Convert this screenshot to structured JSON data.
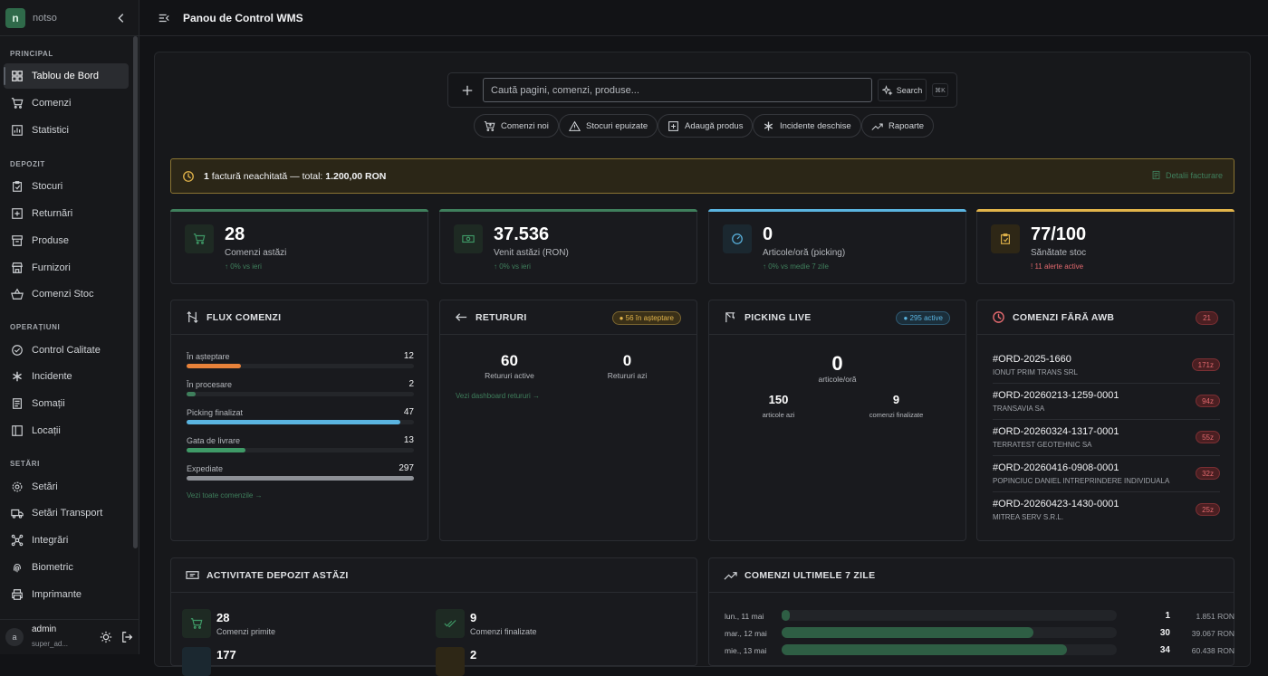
{
  "app": {
    "brand_initial": "n",
    "brand_name": "notso",
    "page_title": "Panou de Control WMS"
  },
  "sidebar": {
    "sections": [
      {
        "label": "PRINCIPAL"
      },
      {
        "label": "DEPOZIT"
      },
      {
        "label": "OPERAȚIUNI"
      },
      {
        "label": "SETĂRI"
      }
    ],
    "items": [
      {
        "label": "Tablou de Bord",
        "icon": "dashboard-icon",
        "active": true
      },
      {
        "label": "Comenzi",
        "icon": "cart-icon"
      },
      {
        "label": "Statistici",
        "icon": "chart-icon"
      },
      {
        "label": "Stocuri",
        "icon": "clipboard-icon"
      },
      {
        "label": "Returnări",
        "icon": "return-box-icon"
      },
      {
        "label": "Produse",
        "icon": "archive-icon"
      },
      {
        "label": "Furnizori",
        "icon": "store-icon"
      },
      {
        "label": "Comenzi Stoc",
        "icon": "basket-icon"
      },
      {
        "label": "Control Calitate",
        "icon": "badge-check-icon"
      },
      {
        "label": "Incidente",
        "icon": "asterisk-icon"
      },
      {
        "label": "Somații",
        "icon": "document-icon"
      },
      {
        "label": "Locații",
        "icon": "book-icon"
      },
      {
        "label": "Setări",
        "icon": "gear-icon"
      },
      {
        "label": "Setări Transport",
        "icon": "truck-icon"
      },
      {
        "label": "Integrări",
        "icon": "network-icon"
      },
      {
        "label": "Biometric",
        "icon": "fingerprint-icon"
      },
      {
        "label": "Imprimante",
        "icon": "printer-icon"
      }
    ],
    "user": {
      "initial": "a",
      "name": "admin",
      "role": "super_ad..."
    }
  },
  "search": {
    "placeholder": "Caută pagini, comenzi, produse...",
    "button": "Search",
    "shortcut": "⌘K"
  },
  "quick_actions": [
    {
      "label": "Comenzi noi",
      "icon": "cart-plus-icon"
    },
    {
      "label": "Stocuri epuizate",
      "icon": "warning-icon"
    },
    {
      "label": "Adaugă produs",
      "icon": "plus-square-icon"
    },
    {
      "label": "Incidente deschise",
      "icon": "asterisk-icon"
    },
    {
      "label": "Rapoarte",
      "icon": "trend-icon"
    }
  ],
  "alert": {
    "count": "1",
    "text": " factură neachitată — total: ",
    "amount": "1.200,00 RON",
    "link": "Detalii facturare"
  },
  "kpis": [
    {
      "value": "28",
      "label": "Comenzi astăzi",
      "sub": "↑ 0% vs ieri",
      "color": "#3f7f5c"
    },
    {
      "value": "37.536",
      "label": "Venit astăzi (RON)",
      "sub": "↑ 0% vs ieri",
      "color": "#3f7f5c"
    },
    {
      "value": "0",
      "label": "Articole/oră (picking)",
      "sub": "↑ 0% vs medie 7 zile",
      "color": "#5ab4e0"
    },
    {
      "value": "77/100",
      "label": "Sănătate stoc",
      "sub": "! 11 alerte active",
      "color": "#e2b44a"
    }
  ],
  "flux": {
    "title": "FLUX COMENZI",
    "rows": [
      {
        "label": "În așteptare",
        "value": "12",
        "pct": 0.24,
        "color": "#e8823a"
      },
      {
        "label": "În procesare",
        "value": "2",
        "pct": 0.04,
        "color": "#3f7f5c"
      },
      {
        "label": "Picking finalizat",
        "value": "47",
        "pct": 0.94,
        "color": "#5ab4e0"
      },
      {
        "label": "Gata de livrare",
        "value": "13",
        "pct": 0.26,
        "color": "#3f9a67"
      },
      {
        "label": "Expediate",
        "value": "297",
        "pct": 1.0,
        "color": "#8d9096"
      }
    ],
    "link": "Vezi toate comenzile →"
  },
  "returns": {
    "title": "RETURURI",
    "badge": "● 56 în așteptare",
    "active_value": "60",
    "active_label": "Retururi active",
    "today_value": "0",
    "today_label": "Retururi azi",
    "link": "Vezi dashboard retururi →"
  },
  "picking": {
    "title": "PICKING LIVE",
    "badge": "● 295 active",
    "rate_value": "0",
    "rate_label": "articole/oră",
    "items_value": "150",
    "items_label": "articole azi",
    "orders_value": "9",
    "orders_label": "comenzi finalizate"
  },
  "awb": {
    "title": "COMENZI FĂRĂ AWB",
    "count": "21",
    "orders": [
      {
        "id": "#ORD-2025-1660",
        "client": "IONUT PRIM TRANS SRL",
        "age": "171z"
      },
      {
        "id": "#ORD-20260213-1259-0001",
        "client": "TRANSAVIA SA",
        "age": "94z"
      },
      {
        "id": "#ORD-20260324-1317-0001",
        "client": "TERRATEST GEOTEHNIC SA",
        "age": "55z"
      },
      {
        "id": "#ORD-20260416-0908-0001",
        "client": "POPINCIUC DANIEL INTREPRINDERE INDIVIDUALA",
        "age": "32z"
      },
      {
        "id": "#ORD-20260423-1430-0001",
        "client": "MITREA SERV S.R.L.",
        "age": "25z"
      }
    ]
  },
  "activity": {
    "title": "ACTIVITATE DEPOZIT ASTĂZI",
    "items": [
      {
        "value": "28",
        "label": "Comenzi primite"
      },
      {
        "value": "9",
        "label": "Comenzi finalizate"
      },
      {
        "value": "177",
        "label": ""
      },
      {
        "value": "2",
        "label": ""
      }
    ]
  },
  "last7": {
    "title": "COMENZI ULTIMELE 7 ZILE",
    "rows": [
      {
        "day": "lun., 11 mai",
        "count": "1",
        "count_num": 1,
        "revenue": "1.851 RON"
      },
      {
        "day": "mar., 12 mai",
        "count": "30",
        "count_num": 30,
        "revenue": "39.067 RON"
      },
      {
        "day": "mie., 13 mai",
        "count": "34",
        "count_num": 34,
        "revenue": "60.438 RON"
      }
    ],
    "max": 40
  }
}
